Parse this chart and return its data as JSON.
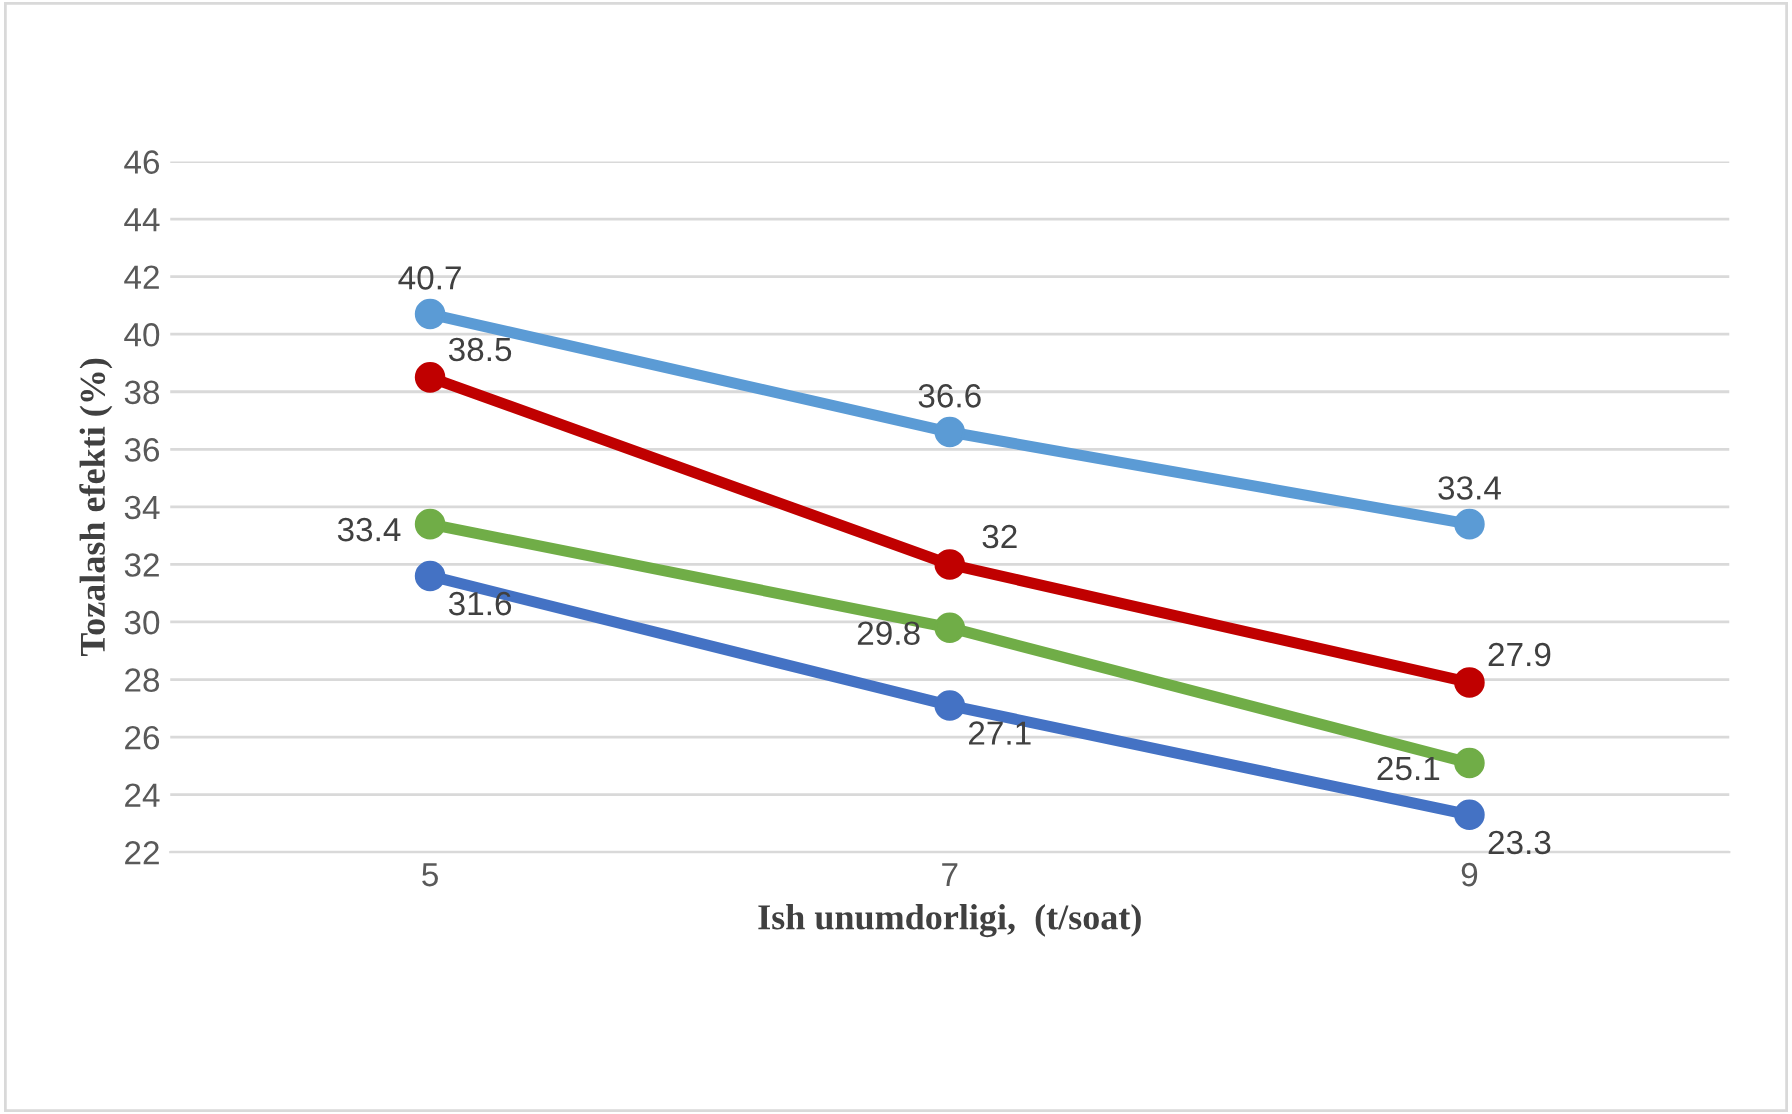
{
  "chart_data": {
    "type": "line",
    "xlabel": "Ish unumdorligi,  (t/soat)",
    "ylabel": "Tozalash efekti (%)",
    "categories": [
      "5",
      "7",
      "9"
    ],
    "series": [
      {
        "color": "#5b9bd5",
        "values": [
          40.7,
          36.6,
          33.4
        ]
      },
      {
        "color": "#c00000",
        "values": [
          38.5,
          32,
          27.9
        ]
      },
      {
        "color": "#70ad47",
        "values": [
          33.4,
          29.8,
          25.1
        ]
      },
      {
        "color": "#4472c4",
        "values": [
          31.6,
          27.1,
          23.3
        ]
      }
    ],
    "ylim": [
      22,
      46
    ],
    "yticks": [
      22,
      24,
      26,
      28,
      30,
      32,
      34,
      36,
      38,
      40,
      42,
      44,
      46
    ],
    "grid": "y",
    "marker": "circle",
    "line_style": "solid",
    "data_labels": true,
    "legend": false
  }
}
